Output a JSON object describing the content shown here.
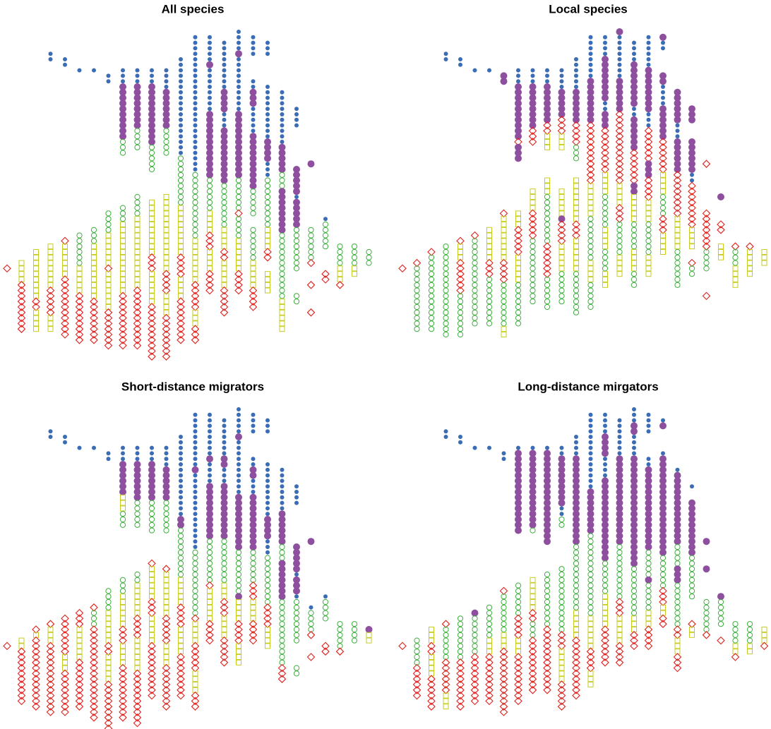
{
  "panels": [
    {
      "title": "All species",
      "columns": [
        ".43r1",
        ".42y4r9",
        ".40y9r2y4",
        ".4b2.33y8r5y3",
        ".5b2.31r1y6r11",
        ".7b1.29g6y5r9",
        ".7b1.28g3y10r8",
        ".8b2.23g4y6r1y7r7",
        ".7b3p10g3.9g3y13r10",
        ".7b3p8g4.8g4y13r11",
        ".7b3p11g5.5y10r3y6r10",
        ".7b4p7g5.7y14r4y4r8",
        ".5b18g9y9r4y4r8",
        ".1b25g12y8r5y3r3",
        ".1b5p1b8p12g6y4r3y4r4",
        ".2b9p4b3p10g8y4r2y5r5",
        ".0b4p1b10p12g6r1g4y6r4",
        ".1b4.4b2p3b5p10g5.2g6y5r4",
        ".2b3.5b10p4b3g9y4r2.2y4",
        ".11b10p5g3p8g12y6",
        ".14b4.7p5b1p5g8.4g2",
        ".24p1.11g6r1.3r1.4r1",
        ".34b1g5.4r2",
        ".39g4y3r1",
        ".39g4y2",
        ".40g3"
      ]
    },
    {
      "title": "Local species",
      "columns": [
        ".43r1",
        ".42r1g12",
        ".40r1g14",
        ".4b2.33g17",
        ".5b2.31r1y3r6g8",
        ".7b1.29r1g16",
        ".7b1.28y6r3g9",
        ".8p2.23r1y8r4g8y2",
        ".7b3p10r1p3.9y3r5y5g8",
        ".7b3p8r3.8y4r5g12",
        ".7b3p7r2y3.5y3g9r6g6",
        ".7b4p5r3y3.7y5p1r4y5g6",
        ".5b6p6r4g3.3y8r3y6g8",
        ".1b8p8r6r5y6g8y4g5",
        ".1b4p8b2p3r8y4g6y4g4y3",
        ".0p1b8p6r8r5y4r3g6y4",
        ".2b4p8b2p6r6p2y5g5y4g3",
        ".1b6p8b3r6p3r4y4g6y4",
        ".1p1b2.4p2b4p6r6y4g4r3y4",
        ".11p6b3p6r8y6g4g3",
        ".14p3.3p6b2r8y4.2r1g2",
        ".24r1.8r7g4.4r1",
        ".30p1.4r2.2y3",
        ".39r1g3y4",
        ".39r1y5",
        ".40y3"
      ]
    },
    {
      "title": "Short-distance migrators",
      "columns": [
        ".43r1",
        ".42y2r10",
        ".40r1y1r13",
        ".4b2.33r1y3r13",
        ".5b2.31r7y3r8",
        ".7b1.29r3y6r9",
        ".7b1.28r1g3r10r7",
        ".8b2.23g4y6r2y5r9",
        ".7b3p6y3g3.9g3y6r3y4r10",
        ".7b3p7g5.8g2y6r4y6r10",
        ".7b3p7g6.5r1y6r3y5r10",
        ".7b4p6g6.6r1y8r5y4r8",
        ".5b15p2g9y5r4y5r8",
        ".1b10p1b14g12r1y4r5y4r3",
        ".1b8p1b4p10g8r1y6r4",
        ".2b7p2b3p10g8y3r3y4r5",
        ".0b5p1b10p10g8p1y4r4y4",
        ".1b4.4b2p2b3p10g6r3y4r4",
        ".2b3.5b10p4b3g9r4y4",
        ".11b8p6g3p7g12r3",
        ".14b4.7p5b1p3b1g8.4g2",
        ".24p1.11b1g4r1.3r1",
        ".34b1g4.4r2",
        ".39g5r1",
        ".39g4",
        ".40p1y2"
      ]
    },
    {
      "title": "Long-distance mirgators",
      "columns": [
        ".43r1",
        ".42g5r1r5",
        ".40y3r2y4r6",
        ".4b2.33r1g6r6y3",
        ".5b2.31g8r9",
        ".7b1.29p1g7r9",
        ".7b1.28g6y3r9",
        ".8b2.23r1g7y3r12",
        ".7b1p15.9g6r4y3r9",
        ".7b1p14g1.8y6r2g3r10",
        ".7b1p17.5g10r3r9",
        ".7b2p9b2g2.7g12r3y6r5",
        ".5b4p16g12y5r3r8",
        ".1b14p8g15y6r4y3",
        ".1b4p4b4p15g6y6r3r4",
        ".2b7p16g10r3y5r4",
        ".0b3p2b4p20g9y3r3",
        ".1b4.4b2p15g5p1g5y3r4",
        ".2b1p1.4b1p18g6r3y2r2",
        ".11b1p13g4p3g8r2y3r3",
        ".14b1.2p10g8.4r1y2",
        ".24p1.4p1.5g6r1",
        ".34p1g5.2r1",
        ".39g4y2r1",
        ".39g4y2",
        ".40y3r1"
      ]
    }
  ]
}
